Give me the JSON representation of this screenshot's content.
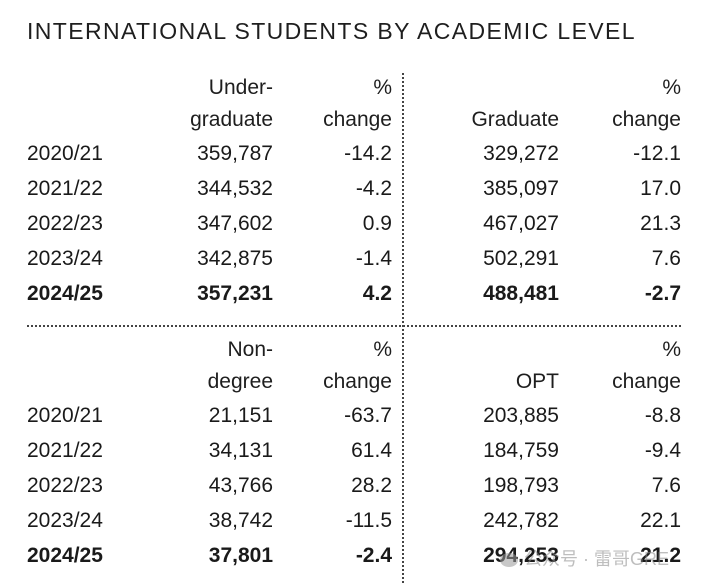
{
  "title": "INTERNATIONAL STUDENTS BY ACADEMIC LEVEL",
  "undergraduate": {
    "header_value": [
      "Under-",
      "graduate"
    ],
    "header_change": [
      "%",
      "change"
    ],
    "rows": [
      {
        "year": "2020/21",
        "value": "359,787",
        "change": "-14.2"
      },
      {
        "year": "2021/22",
        "value": "344,532",
        "change": "-4.2"
      },
      {
        "year": "2022/23",
        "value": "347,602",
        "change": "0.9"
      },
      {
        "year": "2023/24",
        "value": "342,875",
        "change": "-1.4"
      },
      {
        "year": "2024/25",
        "value": "357,231",
        "change": "4.2"
      }
    ]
  },
  "graduate": {
    "header_value": [
      "",
      "Graduate"
    ],
    "header_change": [
      "%",
      "change"
    ],
    "rows": [
      {
        "value": "329,272",
        "change": "-12.1"
      },
      {
        "value": "385,097",
        "change": "17.0"
      },
      {
        "value": "467,027",
        "change": "21.3"
      },
      {
        "value": "502,291",
        "change": "7.6"
      },
      {
        "value": "488,481",
        "change": "-2.7"
      }
    ]
  },
  "nondegree": {
    "header_value": [
      "Non-",
      "degree"
    ],
    "header_change": [
      "%",
      "change"
    ],
    "rows": [
      {
        "year": "2020/21",
        "value": "21,151",
        "change": "-63.7"
      },
      {
        "year": "2021/22",
        "value": "34,131",
        "change": "61.4"
      },
      {
        "year": "2022/23",
        "value": "43,766",
        "change": "28.2"
      },
      {
        "year": "2023/24",
        "value": "38,742",
        "change": "-11.5"
      },
      {
        "year": "2024/25",
        "value": "37,801",
        "change": "-2.4"
      }
    ]
  },
  "opt": {
    "header_value": [
      "",
      "OPT"
    ],
    "header_change": [
      "%",
      "change"
    ],
    "rows": [
      {
        "value": "203,885",
        "change": "-8.8"
      },
      {
        "value": "184,759",
        "change": "-9.4"
      },
      {
        "value": "198,793",
        "change": "7.6"
      },
      {
        "value": "242,782",
        "change": "22.1"
      },
      {
        "value": "294,253",
        "change": "21.2"
      }
    ]
  },
  "watermark": "公众号 · 雷哥GRE"
}
